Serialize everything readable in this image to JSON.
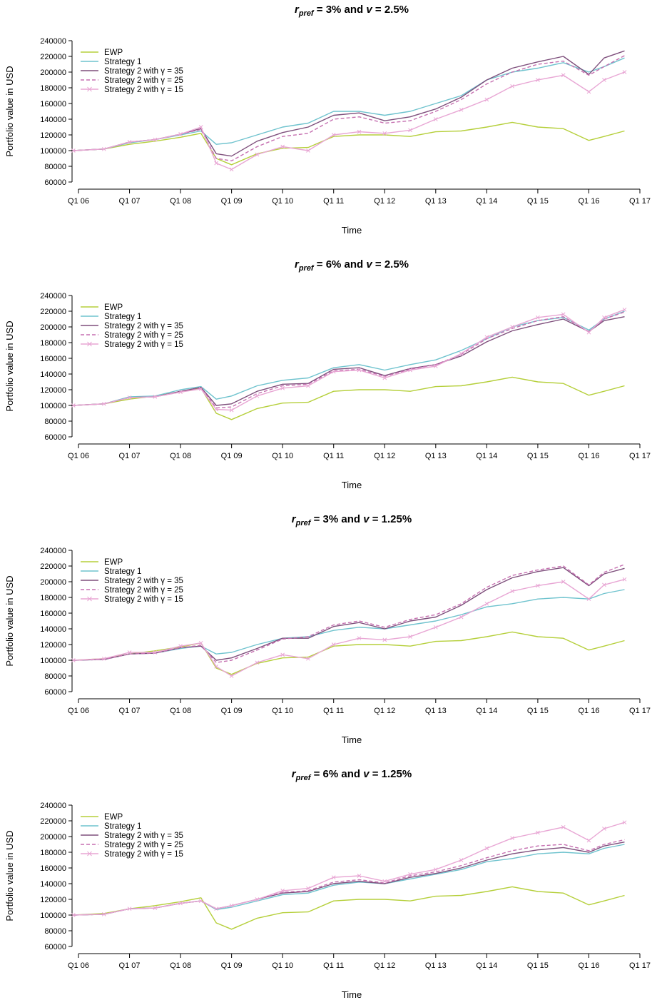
{
  "colors": {
    "ewp": "#b5cf3a",
    "s1": "#6fc3ce",
    "g35": "#7e4f7c",
    "g25": "#c56fb0",
    "g15": "#e8a6d4"
  },
  "chart_data": [
    {
      "type": "line",
      "title_parts": [
        "r",
        "pref",
        " = 3%  and  ",
        "v",
        " = 2.5%"
      ],
      "xlabel": "Time",
      "ylabel": "Portfolio value in USD",
      "ylim": [
        60000,
        240000
      ],
      "yticks": [
        60000,
        80000,
        100000,
        120000,
        140000,
        160000,
        180000,
        200000,
        220000,
        240000
      ],
      "xticks": [
        "Q1 06",
        "Q1 07",
        "Q1 08",
        "Q1 09",
        "Q1 10",
        "Q1 11",
        "Q1 12",
        "Q1 13",
        "Q1 14",
        "Q1 15",
        "Q1 16",
        "Q1 17"
      ],
      "xlim": [
        2006,
        2017
      ],
      "legend_position": "top-left",
      "x": [
        2005.9,
        2006.5,
        2007,
        2007.5,
        2008,
        2008.4,
        2008.7,
        2009,
        2009.5,
        2010,
        2010.5,
        2011,
        2011.5,
        2012,
        2012.5,
        2013,
        2013.5,
        2014,
        2014.5,
        2015,
        2015.5,
        2016,
        2016.3,
        2016.7
      ],
      "series": [
        {
          "name": "EWP",
          "color_key": "ewp",
          "style": "solid",
          "values": [
            100000,
            102000,
            108000,
            112000,
            117000,
            122000,
            90000,
            82000,
            96000,
            103000,
            104000,
            118000,
            120000,
            120000,
            118000,
            124000,
            125000,
            130000,
            136000,
            130000,
            128000,
            113000,
            118000,
            125000
          ]
        },
        {
          "name": "Strategy 1",
          "color_key": "s1",
          "style": "solid",
          "values": [
            100000,
            102000,
            110000,
            114000,
            120000,
            125000,
            108000,
            110000,
            120000,
            130000,
            135000,
            150000,
            150000,
            145000,
            150000,
            160000,
            170000,
            190000,
            200000,
            205000,
            212000,
            200000,
            207000,
            218000
          ]
        },
        {
          "name": "Strategy 2 with γ = 35",
          "color_key": "g35",
          "style": "solid",
          "values": [
            100000,
            102000,
            111000,
            114000,
            121000,
            128000,
            96000,
            93000,
            112000,
            123000,
            130000,
            145000,
            148000,
            138000,
            143000,
            153000,
            168000,
            190000,
            205000,
            213000,
            220000,
            197000,
            218000,
            227000
          ]
        },
        {
          "name": "Strategy 2 with γ = 25",
          "color_key": "g25",
          "style": "dashed",
          "values": [
            100000,
            102000,
            111000,
            114000,
            121000,
            127000,
            90000,
            87000,
            105000,
            118000,
            122000,
            140000,
            143000,
            135000,
            138000,
            150000,
            165000,
            185000,
            200000,
            210000,
            214000,
            196000,
            207000,
            221000
          ]
        },
        {
          "name": "Strategy 2 with γ = 15",
          "color_key": "g15",
          "style": "solid-x",
          "values": [
            100000,
            102000,
            111000,
            114000,
            121000,
            130000,
            84000,
            76000,
            95000,
            105000,
            100000,
            120000,
            124000,
            122000,
            126000,
            140000,
            152000,
            165000,
            182000,
            190000,
            196000,
            175000,
            190000,
            200000
          ]
        }
      ]
    },
    {
      "type": "line",
      "title_parts": [
        "r",
        "pref",
        " = 6%  and  ",
        "v",
        " = 2.5%"
      ],
      "xlabel": "Time",
      "ylabel": "Portfolio value in USD",
      "ylim": [
        60000,
        240000
      ],
      "yticks": [
        60000,
        80000,
        100000,
        120000,
        140000,
        160000,
        180000,
        200000,
        220000,
        240000
      ],
      "xticks": [
        "Q1 06",
        "Q1 07",
        "Q1 08",
        "Q1 09",
        "Q1 10",
        "Q1 11",
        "Q1 12",
        "Q1 13",
        "Q1 14",
        "Q1 15",
        "Q1 16",
        "Q1 17"
      ],
      "xlim": [
        2006,
        2017
      ],
      "legend_position": "top-left",
      "x": [
        2005.9,
        2006.5,
        2007,
        2007.5,
        2008,
        2008.4,
        2008.7,
        2009,
        2009.5,
        2010,
        2010.5,
        2011,
        2011.5,
        2012,
        2012.5,
        2013,
        2013.5,
        2014,
        2014.5,
        2015,
        2015.5,
        2016,
        2016.3,
        2016.7
      ],
      "series": [
        {
          "name": "EWP",
          "color_key": "ewp",
          "style": "solid",
          "values": [
            100000,
            102000,
            108000,
            112000,
            117000,
            122000,
            90000,
            82000,
            96000,
            103000,
            104000,
            118000,
            120000,
            120000,
            118000,
            124000,
            125000,
            130000,
            136000,
            130000,
            128000,
            113000,
            118000,
            125000
          ]
        },
        {
          "name": "Strategy 1",
          "color_key": "s1",
          "style": "solid",
          "values": [
            100000,
            102000,
            111000,
            112000,
            120000,
            124000,
            108000,
            112000,
            125000,
            132000,
            135000,
            148000,
            152000,
            145000,
            152000,
            158000,
            170000,
            185000,
            200000,
            208000,
            212000,
            196000,
            210000,
            220000
          ]
        },
        {
          "name": "Strategy 2 with γ = 35",
          "color_key": "g35",
          "style": "solid",
          "values": [
            100000,
            102000,
            110000,
            111000,
            118000,
            123000,
            100000,
            102000,
            118000,
            127000,
            128000,
            146000,
            148000,
            138000,
            147000,
            152000,
            163000,
            181000,
            195000,
            203000,
            210000,
            194000,
            208000,
            213000
          ]
        },
        {
          "name": "Strategy 2 with γ = 25",
          "color_key": "g25",
          "style": "dashed",
          "values": [
            100000,
            102000,
            110000,
            111000,
            117000,
            122000,
            97000,
            98000,
            115000,
            125000,
            127000,
            144000,
            146000,
            137000,
            146000,
            152000,
            165000,
            185000,
            198000,
            208000,
            213000,
            194000,
            210000,
            219000
          ]
        },
        {
          "name": "Strategy 2 with γ = 15",
          "color_key": "g15",
          "style": "solid-x",
          "values": [
            100000,
            102000,
            110000,
            111000,
            117000,
            121000,
            95000,
            94000,
            112000,
            122000,
            125000,
            143000,
            145000,
            135000,
            145000,
            150000,
            166000,
            187000,
            200000,
            212000,
            216000,
            193000,
            212000,
            222000
          ]
        }
      ]
    },
    {
      "type": "line",
      "title_parts": [
        "r",
        "pref",
        " = 3%  and  ",
        "v",
        " = 1.25%"
      ],
      "xlabel": "Time",
      "ylabel": "Portfolio value in USD",
      "ylim": [
        60000,
        240000
      ],
      "yticks": [
        60000,
        80000,
        100000,
        120000,
        140000,
        160000,
        180000,
        200000,
        220000,
        240000
      ],
      "xticks": [
        "Q1 06",
        "Q1 07",
        "Q1 08",
        "Q1 09",
        "Q1 10",
        "Q1 11",
        "Q1 12",
        "Q1 13",
        "Q1 14",
        "Q1 15",
        "Q1 16",
        "Q1 17"
      ],
      "xlim": [
        2006,
        2017
      ],
      "legend_position": "top-left",
      "x": [
        2005.9,
        2006.5,
        2007,
        2007.5,
        2008,
        2008.4,
        2008.7,
        2009,
        2009.5,
        2010,
        2010.5,
        2011,
        2011.5,
        2012,
        2012.5,
        2013,
        2013.5,
        2014,
        2014.5,
        2015,
        2015.5,
        2016,
        2016.3,
        2016.7
      ],
      "series": [
        {
          "name": "EWP",
          "color_key": "ewp",
          "style": "solid",
          "values": [
            100000,
            102000,
            108000,
            112000,
            117000,
            122000,
            90000,
            82000,
            96000,
            103000,
            104000,
            118000,
            120000,
            120000,
            118000,
            124000,
            125000,
            130000,
            136000,
            130000,
            128000,
            113000,
            118000,
            125000
          ]
        },
        {
          "name": "Strategy 1",
          "color_key": "s1",
          "style": "solid",
          "values": [
            100000,
            101000,
            108000,
            109000,
            115000,
            118000,
            108000,
            110000,
            120000,
            128000,
            130000,
            138000,
            142000,
            140000,
            145000,
            150000,
            158000,
            168000,
            172000,
            178000,
            180000,
            178000,
            185000,
            190000
          ]
        },
        {
          "name": "Strategy 2 with γ = 35",
          "color_key": "g35",
          "style": "solid",
          "values": [
            100000,
            101000,
            108000,
            109000,
            116000,
            118000,
            100000,
            103000,
            115000,
            128000,
            128000,
            143000,
            148000,
            140000,
            150000,
            155000,
            170000,
            190000,
            205000,
            213000,
            218000,
            195000,
            210000,
            217000
          ]
        },
        {
          "name": "Strategy 2 with γ = 25",
          "color_key": "g25",
          "style": "dashed",
          "values": [
            100000,
            101000,
            108000,
            109000,
            116000,
            119000,
            97000,
            100000,
            113000,
            127000,
            130000,
            145000,
            150000,
            142000,
            152000,
            158000,
            172000,
            193000,
            208000,
            215000,
            220000,
            196000,
            212000,
            222000
          ]
        },
        {
          "name": "Strategy 2 with γ = 15",
          "color_key": "g15",
          "style": "solid-x",
          "values": [
            100000,
            102000,
            110000,
            110000,
            118000,
            122000,
            92000,
            80000,
            97000,
            107000,
            102000,
            120000,
            128000,
            126000,
            130000,
            142000,
            155000,
            172000,
            188000,
            195000,
            200000,
            178000,
            196000,
            203000
          ]
        }
      ]
    },
    {
      "type": "line",
      "title_parts": [
        "r",
        "pref",
        " = 6%  and  ",
        "v",
        " = 1.25%"
      ],
      "xlabel": "Time",
      "ylabel": "Portfolio value in USD",
      "ylim": [
        60000,
        240000
      ],
      "yticks": [
        60000,
        80000,
        100000,
        120000,
        140000,
        160000,
        180000,
        200000,
        220000,
        240000
      ],
      "xticks": [
        "Q1 06",
        "Q1 07",
        "Q1 08",
        "Q1 09",
        "Q1 10",
        "Q1 11",
        "Q1 12",
        "Q1 13",
        "Q1 14",
        "Q1 15",
        "Q1 16",
        "Q1 17"
      ],
      "xlim": [
        2006,
        2017
      ],
      "legend_position": "top-left",
      "x": [
        2005.9,
        2006.5,
        2007,
        2007.5,
        2008,
        2008.4,
        2008.7,
        2009,
        2009.5,
        2010,
        2010.5,
        2011,
        2011.5,
        2012,
        2012.5,
        2013,
        2013.5,
        2014,
        2014.5,
        2015,
        2015.5,
        2016,
        2016.3,
        2016.7
      ],
      "series": [
        {
          "name": "EWP",
          "color_key": "ewp",
          "style": "solid",
          "values": [
            100000,
            102000,
            108000,
            112000,
            117000,
            122000,
            90000,
            82000,
            96000,
            103000,
            104000,
            118000,
            120000,
            120000,
            118000,
            124000,
            125000,
            130000,
            136000,
            130000,
            128000,
            113000,
            118000,
            125000
          ]
        },
        {
          "name": "Strategy 1",
          "color_key": "s1",
          "style": "solid",
          "values": [
            100000,
            101000,
            108000,
            109000,
            115000,
            118000,
            107000,
            110000,
            118000,
            126000,
            128000,
            138000,
            142000,
            140000,
            146000,
            152000,
            158000,
            168000,
            172000,
            178000,
            180000,
            178000,
            185000,
            190000
          ]
        },
        {
          "name": "Strategy 2 with γ = 35",
          "color_key": "g35",
          "style": "solid",
          "values": [
            100000,
            101000,
            108000,
            109000,
            115000,
            118000,
            108000,
            112000,
            120000,
            128000,
            130000,
            140000,
            143000,
            140000,
            148000,
            153000,
            160000,
            170000,
            178000,
            183000,
            186000,
            180000,
            188000,
            193000
          ]
        },
        {
          "name": "Strategy 2 with γ = 25",
          "color_key": "g25",
          "style": "dashed",
          "values": [
            100000,
            101000,
            108000,
            109000,
            115000,
            118000,
            108000,
            112000,
            120000,
            129000,
            131000,
            142000,
            145000,
            141000,
            150000,
            155000,
            163000,
            173000,
            182000,
            188000,
            190000,
            182000,
            190000,
            196000
          ]
        },
        {
          "name": "Strategy 2 with γ = 15",
          "color_key": "g15",
          "style": "solid-x",
          "values": [
            100000,
            101000,
            108000,
            109000,
            115000,
            118000,
            108000,
            112000,
            120000,
            131000,
            134000,
            148000,
            150000,
            143000,
            152000,
            158000,
            170000,
            185000,
            198000,
            205000,
            212000,
            195000,
            210000,
            218000
          ]
        }
      ]
    }
  ]
}
